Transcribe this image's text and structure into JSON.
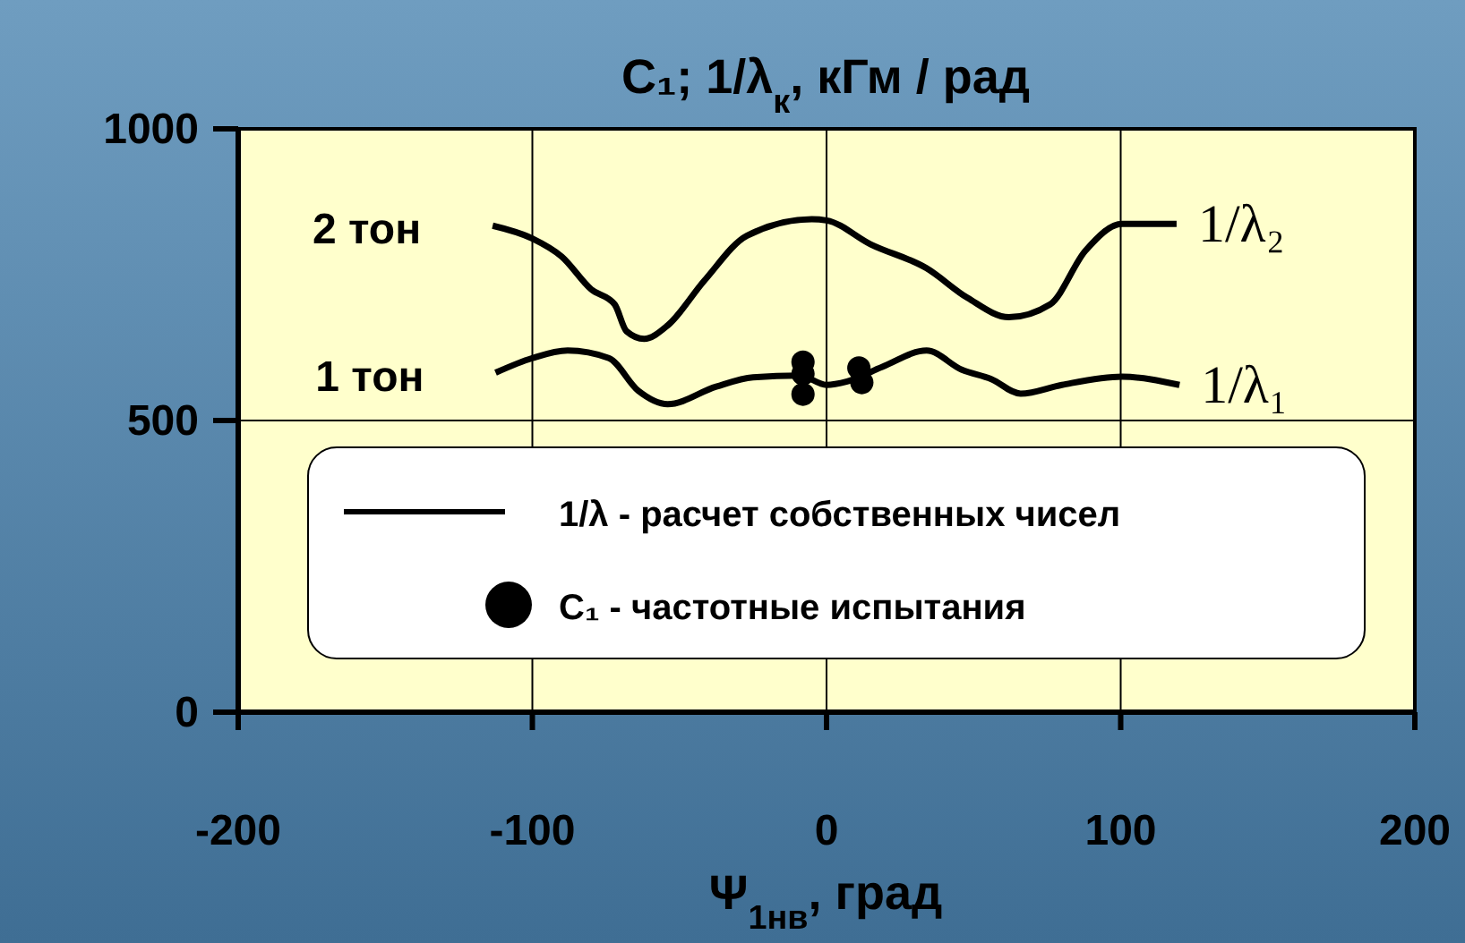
{
  "chart_data": {
    "type": "line",
    "title": "C₁; 1/λ$_{к}$,  кГм / рад",
    "xlabel": "Ψ$_{1нв}$, град",
    "xlim": [
      -200,
      200
    ],
    "xticks": [
      -200,
      -100,
      0,
      100,
      200
    ],
    "ylim": [
      0,
      1000
    ],
    "yticks": [
      0,
      500,
      1000
    ],
    "grid": true,
    "legend": "bottom",
    "marker": "none",
    "line_style": "solid",
    "series": [
      {
        "name": "1/λ -  расчет собственных чисел",
        "color": "#000000",
        "x": [
          -113.5,
          -100,
          -90,
          -80,
          -72,
          -68,
          -62,
          -54,
          -41.5,
          -27,
          -5,
          0,
          15,
          34,
          48,
          62,
          76,
          88,
          100.5,
          119
        ],
        "values": [
          834,
          812,
          781,
          725,
          699,
          653,
          640,
          663,
          740,
          817,
          845,
          843,
          802,
          761,
          710,
          677,
          699,
          791,
          837,
          837
        ]
      },
      {
        "color": "#000000",
        "x": [
          -112.5,
          -100,
          -88,
          -74,
          -64,
          -54,
          -37.5,
          -25,
          -9,
          0,
          7,
          19,
          34,
          46,
          56,
          66,
          80,
          100.5,
          120
        ],
        "values": [
          582,
          607,
          620,
          607,
          551,
          528,
          558,
          574,
          577,
          561,
          567,
          592,
          620,
          587,
          571,
          546,
          561,
          575,
          561
        ]
      },
      {
        "type": "scatter",
        "name": "C₁ -  частотные испытания",
        "color": "#000000",
        "marker": "circle",
        "x": [
          -8,
          -8,
          -8,
          11,
          12
        ],
        "values": [
          600,
          580,
          545,
          590,
          565
        ]
      }
    ],
    "annotations": [
      {
        "text": "2 тон",
        "x": -113.5,
        "y": 834
      },
      {
        "text": "1 тон",
        "x": -112.5,
        "y": 582
      },
      {
        "text": "1/λ₂",
        "x": 119,
        "y": 837
      },
      {
        "text": "1/λ₁",
        "x": 120,
        "y": 561
      }
    ]
  }
}
